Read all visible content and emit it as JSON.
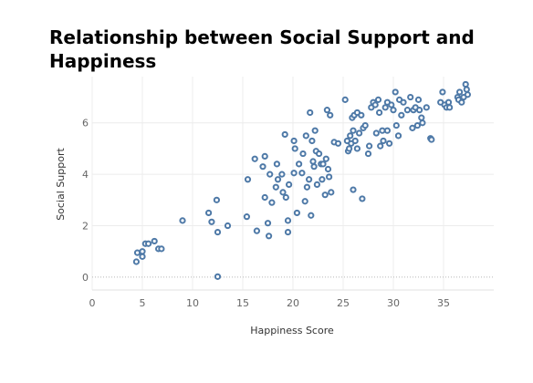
{
  "chart_data": {
    "type": "scatter",
    "title": "Relationship between Social Support and Happiness",
    "xlabel": "Happiness Score",
    "ylabel": "Social Support",
    "xlim": [
      0,
      40
    ],
    "ylim": [
      -0.5,
      7.8
    ],
    "xticks": [
      0,
      5,
      10,
      15,
      20,
      25,
      30,
      35
    ],
    "yticks": [
      0,
      2,
      4,
      6
    ],
    "grid": true,
    "marker_color": "#4e79a7",
    "grid_color": "#ececec",
    "zero_line_color": "#b8b8b8",
    "points": [
      [
        4.4,
        0.6
      ],
      [
        4.5,
        0.95
      ],
      [
        5.0,
        0.8
      ],
      [
        5.0,
        1.0
      ],
      [
        5.3,
        1.3
      ],
      [
        5.6,
        1.3
      ],
      [
        6.2,
        1.4
      ],
      [
        6.6,
        1.1
      ],
      [
        6.9,
        1.1
      ],
      [
        9.0,
        2.2
      ],
      [
        11.6,
        2.5
      ],
      [
        11.9,
        2.15
      ],
      [
        12.4,
        3.0
      ],
      [
        12.5,
        1.75
      ],
      [
        12.5,
        0.02
      ],
      [
        13.5,
        2.0
      ],
      [
        15.4,
        2.35
      ],
      [
        15.5,
        3.8
      ],
      [
        16.2,
        4.6
      ],
      [
        16.4,
        1.8
      ],
      [
        17.0,
        4.3
      ],
      [
        17.2,
        3.1
      ],
      [
        17.2,
        4.7
      ],
      [
        17.5,
        2.1
      ],
      [
        17.6,
        1.6
      ],
      [
        17.7,
        4.0
      ],
      [
        17.9,
        2.9
      ],
      [
        18.3,
        3.5
      ],
      [
        18.4,
        4.4
      ],
      [
        18.5,
        3.8
      ],
      [
        18.9,
        4.0
      ],
      [
        19.0,
        3.3
      ],
      [
        19.2,
        5.55
      ],
      [
        19.3,
        3.1
      ],
      [
        19.5,
        2.2
      ],
      [
        19.5,
        1.75
      ],
      [
        19.6,
        3.6
      ],
      [
        20.1,
        4.05
      ],
      [
        20.1,
        5.3
      ],
      [
        20.2,
        5.0
      ],
      [
        20.4,
        2.5
      ],
      [
        20.6,
        4.4
      ],
      [
        20.9,
        4.05
      ],
      [
        21.0,
        4.8
      ],
      [
        21.2,
        2.95
      ],
      [
        21.3,
        5.5
      ],
      [
        21.4,
        3.5
      ],
      [
        21.6,
        3.8
      ],
      [
        21.7,
        6.4
      ],
      [
        21.8,
        2.4
      ],
      [
        21.9,
        5.3
      ],
      [
        22.0,
        4.5
      ],
      [
        22.1,
        4.3
      ],
      [
        22.2,
        5.7
      ],
      [
        22.3,
        4.9
      ],
      [
        22.4,
        3.6
      ],
      [
        22.6,
        4.8
      ],
      [
        22.8,
        4.4
      ],
      [
        22.9,
        3.8
      ],
      [
        23.0,
        4.4
      ],
      [
        23.2,
        3.2
      ],
      [
        23.3,
        4.6
      ],
      [
        23.4,
        6.5
      ],
      [
        23.5,
        4.2
      ],
      [
        23.6,
        3.9
      ],
      [
        23.7,
        6.3
      ],
      [
        23.8,
        3.3
      ],
      [
        24.1,
        5.25
      ],
      [
        24.5,
        5.2
      ],
      [
        25.2,
        6.9
      ],
      [
        25.4,
        5.3
      ],
      [
        25.5,
        4.9
      ],
      [
        25.6,
        5.0
      ],
      [
        25.7,
        5.5
      ],
      [
        25.8,
        5.2
      ],
      [
        25.9,
        6.2
      ],
      [
        26.0,
        3.4
      ],
      [
        26.0,
        5.7
      ],
      [
        26.1,
        6.3
      ],
      [
        26.2,
        5.3
      ],
      [
        26.4,
        6.4
      ],
      [
        26.4,
        5.0
      ],
      [
        26.6,
        5.6
      ],
      [
        26.8,
        6.3
      ],
      [
        26.9,
        3.05
      ],
      [
        27.0,
        5.8
      ],
      [
        27.2,
        5.9
      ],
      [
        27.5,
        4.8
      ],
      [
        27.6,
        5.1
      ],
      [
        27.8,
        6.6
      ],
      [
        28.0,
        6.8
      ],
      [
        28.2,
        6.7
      ],
      [
        28.3,
        5.6
      ],
      [
        28.5,
        6.9
      ],
      [
        28.6,
        6.4
      ],
      [
        28.7,
        5.1
      ],
      [
        28.9,
        5.7
      ],
      [
        29.0,
        5.3
      ],
      [
        29.2,
        6.6
      ],
      [
        29.4,
        6.8
      ],
      [
        29.4,
        5.7
      ],
      [
        29.6,
        5.2
      ],
      [
        29.8,
        6.7
      ],
      [
        30.0,
        6.5
      ],
      [
        30.2,
        7.2
      ],
      [
        30.3,
        5.9
      ],
      [
        30.5,
        5.5
      ],
      [
        30.6,
        6.9
      ],
      [
        30.8,
        6.3
      ],
      [
        31.0,
        6.8
      ],
      [
        31.4,
        6.5
      ],
      [
        31.7,
        7.0
      ],
      [
        31.9,
        5.8
      ],
      [
        32.0,
        6.5
      ],
      [
        32.2,
        6.6
      ],
      [
        32.4,
        5.9
      ],
      [
        32.5,
        6.9
      ],
      [
        32.6,
        6.5
      ],
      [
        32.8,
        6.2
      ],
      [
        32.9,
        6.0
      ],
      [
        33.3,
        6.6
      ],
      [
        33.7,
        5.4
      ],
      [
        33.8,
        5.35
      ],
      [
        34.7,
        6.8
      ],
      [
        34.9,
        7.2
      ],
      [
        35.1,
        6.7
      ],
      [
        35.3,
        6.6
      ],
      [
        35.5,
        6.8
      ],
      [
        35.6,
        6.6
      ],
      [
        36.4,
        7.0
      ],
      [
        36.5,
        6.9
      ],
      [
        36.6,
        7.2
      ],
      [
        36.8,
        6.8
      ],
      [
        37.0,
        7.0
      ],
      [
        37.2,
        7.5
      ],
      [
        37.3,
        7.3
      ],
      [
        37.4,
        7.1
      ]
    ]
  }
}
